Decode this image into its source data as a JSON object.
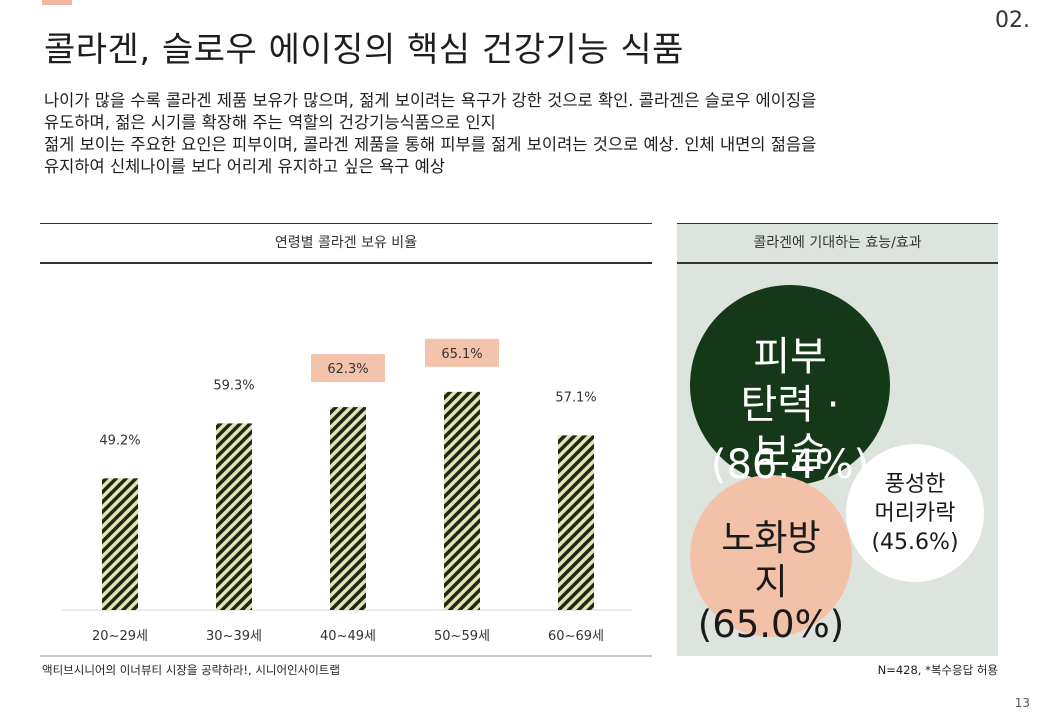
{
  "page": {
    "code": "02.",
    "number": "13"
  },
  "title": "콜라겐, 슬로우 에이징의 핵심 건강기능 식품",
  "description": [
    "나이가 많을 수록 콜라겐 제품 보유가 많으며, 젊게 보이려는 욕구가 강한 것으로 확인. 콜라겐은 슬로우 에이징을",
    "유도하며, 젊은 시기를 확장해 주는 역할의 건강기능식품으로 인지",
    "젊게 보이는 주요한 요인은 피부이며, 콜라겐 제품을 통해 피부를 젊게 보이려는 것으로 예상. 인체 내면의 젊음을",
    "유지하여 신체나이를 보다 어리게 유지하고 싶은 욕구 예상"
  ],
  "left_panel": {
    "header": "연령별 콜라겐 보유 비율",
    "source": "액티브시니어의 이너뷰티 시장을 공략하라!, 시니어인사이트랩"
  },
  "right_panel": {
    "header": "콜라겐에 기대하는 효능/효과",
    "note": "N=428, *복수응답 허용",
    "bubbles": {
      "skin": {
        "label": "피부\n탄력 ·\n보습",
        "value": "(86.4%)"
      },
      "aging": {
        "label": "노화방\n지",
        "value": "(65.0%)"
      },
      "hair": {
        "label": "풍성한\n머리카락\n(45.6%)"
      }
    }
  },
  "colors": {
    "bar_fill": "#e8e2b0",
    "bar_stripe": "#1a2a18",
    "highlight_label_bg": "#f3c3ac",
    "panel_bg": "#dde4dd",
    "skin_bubble": "#153818",
    "aging_bubble": "#f3c1a8"
  },
  "chart_data": {
    "type": "bar",
    "title": "연령별 콜라겐 보유 비율",
    "categories": [
      "20~29세",
      "30~39세",
      "40~49세",
      "50~59세",
      "60~69세"
    ],
    "values": [
      49.2,
      59.3,
      62.3,
      65.1,
      57.1
    ],
    "value_labels": [
      "49.2%",
      "59.3%",
      "62.3%",
      "65.1%",
      "57.1%"
    ],
    "highlighted": [
      false,
      false,
      true,
      true,
      false
    ],
    "xlabel": "",
    "ylabel": "",
    "ylim": [
      0,
      100
    ],
    "grid": false,
    "legend": "none"
  }
}
